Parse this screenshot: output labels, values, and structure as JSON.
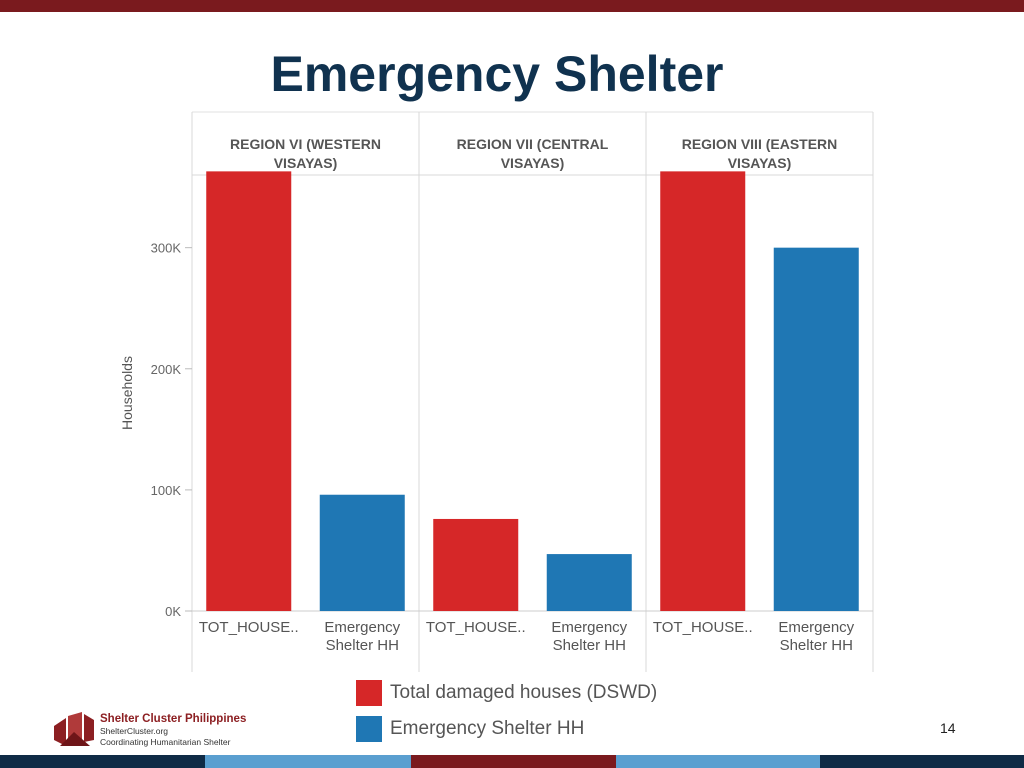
{
  "slide": {
    "title": "Emergency Shelter",
    "page_number": "14"
  },
  "footer": {
    "org_name": "Shelter Cluster Philippines",
    "url": "ShelterCluster.org",
    "tagline": "Coordinating Humanitarian Shelter"
  },
  "colors": {
    "top_bar": "#7a1a1e",
    "title": "#10324f",
    "red_series": "#d62728",
    "blue_series": "#1f77b4",
    "bottom_bar": [
      "#0f2b46",
      "#5a9fd0",
      "#7a1a1e",
      "#5a9fd0",
      "#0f2b46"
    ]
  },
  "chart_data": {
    "type": "bar",
    "ylabel": "Households",
    "ylim": [
      0,
      360000
    ],
    "yticks": [
      {
        "value": 0,
        "label": "0K"
      },
      {
        "value": 100000,
        "label": "100K"
      },
      {
        "value": 200000,
        "label": "200K"
      },
      {
        "value": 300000,
        "label": "300K"
      }
    ],
    "grid": false,
    "legend_position": "bottom",
    "panels": [
      {
        "header": [
          "REGION VI (WESTERN",
          "VISAYAS)"
        ],
        "bars": [
          {
            "label": [
              "TOT_HOUSE.."
            ],
            "value": 363000,
            "series": 0
          },
          {
            "label": [
              "Emergency",
              "Shelter HH"
            ],
            "value": 96000,
            "series": 1
          }
        ]
      },
      {
        "header": [
          "REGION VII (CENTRAL",
          "VISAYAS)"
        ],
        "bars": [
          {
            "label": [
              "TOT_HOUSE.."
            ],
            "value": 76000,
            "series": 0
          },
          {
            "label": [
              "Emergency",
              "Shelter HH"
            ],
            "value": 47000,
            "series": 1
          }
        ]
      },
      {
        "header": [
          "REGION VIII (EASTERN",
          "VISAYAS)"
        ],
        "bars": [
          {
            "label": [
              "TOT_HOUSE.."
            ],
            "value": 363000,
            "series": 0
          },
          {
            "label": [
              "Emergency",
              "Shelter HH"
            ],
            "value": 300000,
            "series": 1
          }
        ]
      }
    ],
    "series": [
      {
        "name": "Total damaged houses (DSWD)",
        "color": "#d62728"
      },
      {
        "name": "Emergency Shelter HH",
        "color": "#1f77b4"
      }
    ]
  }
}
